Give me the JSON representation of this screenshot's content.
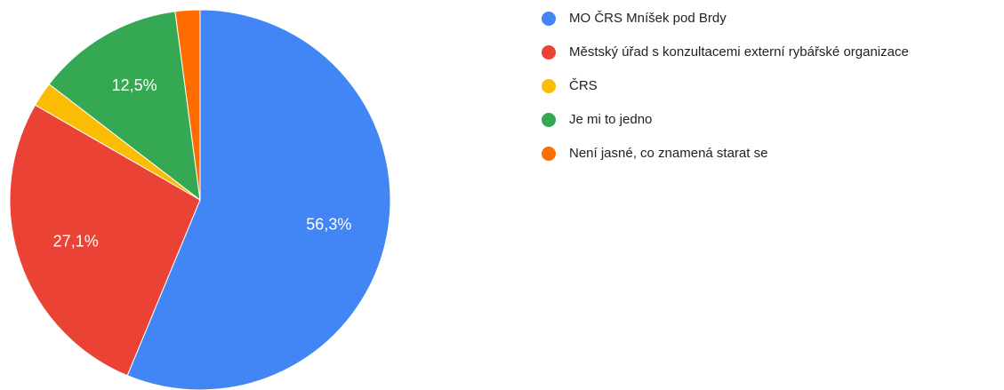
{
  "chart_data": {
    "type": "pie",
    "categories": [
      "MO ČRS Mníšek pod Brdy",
      "Městský úřad s konzultacemi externí rybářské organizace",
      "ČRS",
      "Je mi to jedno",
      "Není jasné, co znamená starat se"
    ],
    "values": [
      56.3,
      27.1,
      2.1,
      12.5,
      2.1
    ],
    "value_labels": [
      "56,3%",
      "27,1%",
      null,
      "12,5%",
      null
    ],
    "colors": [
      "#4285f4",
      "#ea4335",
      "#fbbc04",
      "#34a853",
      "#ff6d01"
    ],
    "legend": "right"
  }
}
